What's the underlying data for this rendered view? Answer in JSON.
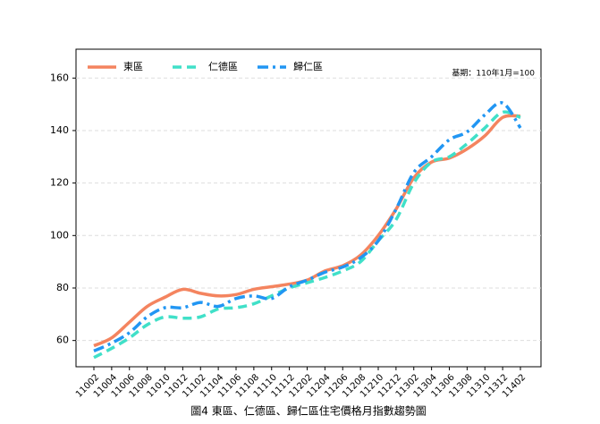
{
  "chart_data": {
    "type": "line",
    "caption": "圖4 東區、仁德區、歸仁區住宅價格月指數趨勢圖",
    "annotation": "基期：110年1月=100",
    "categories": [
      "11002",
      "11004",
      "11006",
      "11008",
      "11010",
      "11012",
      "11102",
      "11104",
      "11106",
      "11108",
      "11110",
      "11112",
      "11202",
      "11204",
      "11206",
      "11208",
      "11210",
      "11212",
      "11302",
      "11304",
      "11306",
      "11308",
      "11310",
      "11312",
      "11402"
    ],
    "series": [
      {
        "name": "東區",
        "color": "#f4845f",
        "dash": "solid",
        "values": [
          58,
          61,
          67,
          73,
          76.5,
          79.5,
          78,
          77,
          77.5,
          79.5,
          80.5,
          81.5,
          83,
          86.5,
          88.5,
          92.5,
          100,
          110,
          122,
          128,
          129.5,
          133,
          138,
          145,
          145.5
        ]
      },
      {
        "name": "仁德區",
        "color": "#40e0c8",
        "dash": "dashed",
        "values": [
          53.5,
          57,
          61,
          66,
          69,
          68.5,
          69,
          72,
          72.5,
          74,
          77,
          80,
          82,
          84,
          86.5,
          90,
          98,
          106,
          120,
          128,
          130,
          135,
          141,
          147,
          145
        ]
      },
      {
        "name": "歸仁區",
        "color": "#2196f3",
        "dash": "dashdot",
        "values": [
          56,
          59,
          63,
          69,
          72.5,
          72.5,
          74.5,
          73,
          76,
          77,
          76,
          80.5,
          83,
          86,
          88,
          91.5,
          98,
          110,
          124,
          130,
          136.5,
          139.5,
          146,
          150.5,
          141
        ]
      }
    ],
    "ylim": [
      50,
      171
    ],
    "yticks": [
      60,
      80,
      100,
      120,
      140,
      160
    ],
    "grid": true,
    "legend": "upper left"
  }
}
